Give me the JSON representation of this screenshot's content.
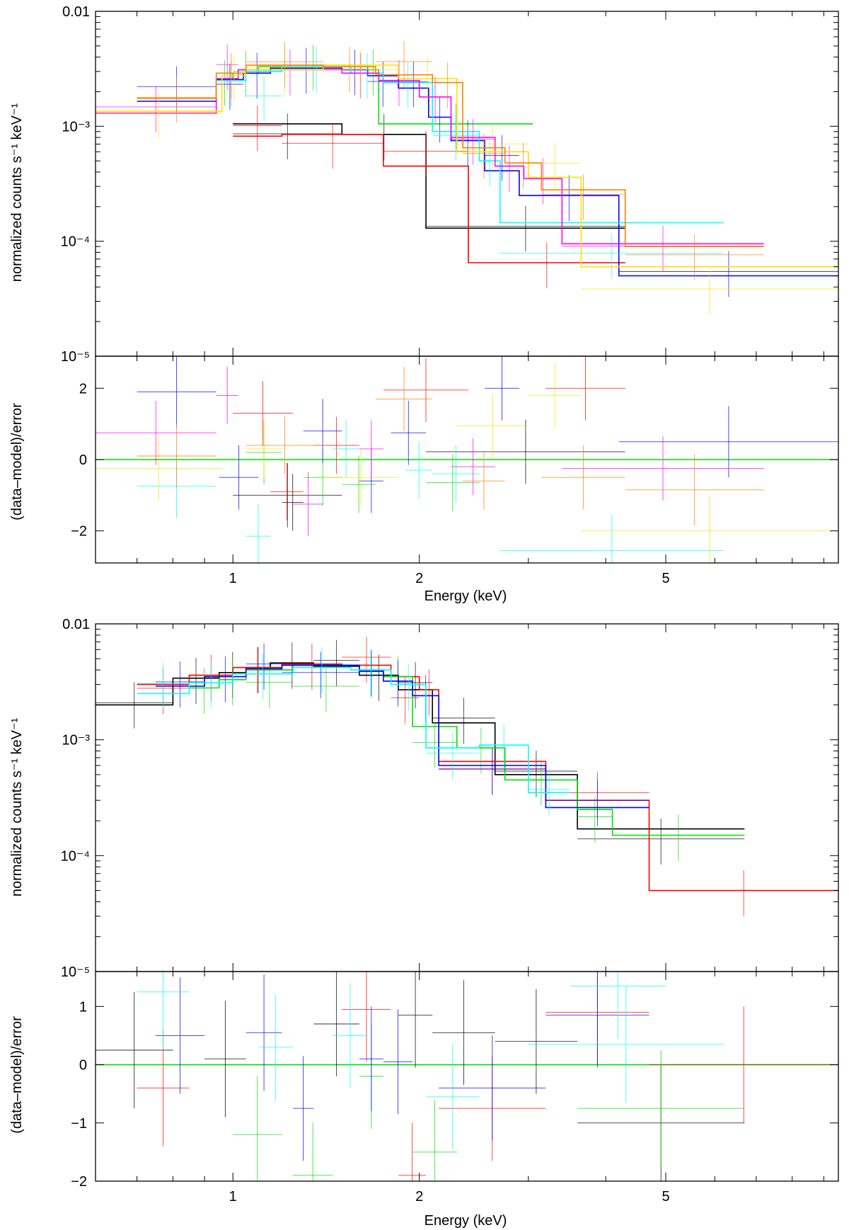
{
  "colors": {
    "black": "#000000",
    "red": "#ff0000",
    "green": "#00e000",
    "blue": "#0000ff",
    "cyan": "#00ffff",
    "magenta": "#ff00ff",
    "yellow": "#ffe000",
    "orange": "#ff8000"
  },
  "chart_data": [
    {
      "panel": "top",
      "type": "line",
      "title": "",
      "xlabel": "Energy (keV)",
      "xscale": "log",
      "xlim": [
        0.6,
        9.5
      ],
      "xticks": [
        {
          "v": 1,
          "label": "1"
        },
        {
          "v": 2,
          "label": "2"
        },
        {
          "v": 5,
          "label": "5"
        }
      ],
      "spectrum": {
        "ylabel": "normalized counts s⁻¹ keV⁻¹",
        "yscale": "log",
        "ylim": [
          1e-05,
          0.01
        ],
        "yticks": [
          {
            "v": 0.01,
            "label": "0.01"
          },
          {
            "v": 0.001,
            "label": "10⁻³"
          },
          {
            "v": 0.0001,
            "label": "10⁻⁴"
          },
          {
            "v": 1e-05,
            "label": "10⁻⁵"
          }
        ],
        "series": [
          {
            "name": "black",
            "color": "black",
            "edges": [
              1.0,
              1.5,
              2.05,
              4.3
            ],
            "model": [
              0.00105,
              0.00085,
              0.00013
            ]
          },
          {
            "name": "red",
            "color": "red",
            "edges": [
              1.0,
              1.2,
              1.75,
              2.4,
              4.3
            ],
            "model": [
              0.00082,
              0.00085,
              0.00045,
              6.5e-05
            ]
          },
          {
            "name": "green",
            "color": "green",
            "edges": [
              0.94,
              1.0,
              1.1,
              1.65,
              1.72,
              3.05
            ],
            "model": [
              0.0025,
              0.0029,
              0.0033,
              0.0031,
              0.00105
            ]
          },
          {
            "name": "blue",
            "color": "blue",
            "edges": [
              0.7,
              0.94,
              1.04,
              1.15,
              1.5,
              1.65,
              1.85,
              2.07,
              2.25,
              2.55,
              2.9,
              4.2,
              9.5
            ],
            "model": [
              0.00165,
              0.00255,
              0.0029,
              0.0032,
              0.0031,
              0.00275,
              0.00215,
              0.0012,
              0.00075,
              0.00041,
              0.00025,
              5e-05
            ]
          },
          {
            "name": "cyan",
            "color": "cyan",
            "edges": [
              0.94,
              1.05,
              1.2,
              1.55,
              1.75,
              2.1,
              2.5,
              2.7,
              6.2
            ],
            "model": [
              0.0025,
              0.003,
              0.0033,
              0.0029,
              0.0024,
              0.0009,
              0.0005,
              0.000145
            ]
          },
          {
            "name": "magenta",
            "color": "magenta",
            "edges": [
              0.6,
              0.94,
              1.02,
              1.5,
              1.72,
              2.0,
              2.25,
              2.65,
              2.95,
              3.4,
              7.2
            ],
            "model": [
              0.0013,
              0.0026,
              0.0031,
              0.0029,
              0.0025,
              0.0018,
              0.0008,
              0.00045,
              0.00035,
              9.5e-05
            ]
          },
          {
            "name": "yellow",
            "color": "yellow",
            "edges": [
              0.6,
              0.96,
              1.05,
              1.4,
              1.85,
              2.3,
              3.0,
              3.65,
              9.5
            ],
            "model": [
              0.00135,
              0.00275,
              0.0031,
              0.0034,
              0.0026,
              0.0006,
              0.00036,
              6e-05
            ]
          },
          {
            "name": "orange",
            "color": "orange",
            "edges": [
              0.7,
              0.94,
              1.05,
              1.4,
              1.7,
              2.1,
              2.35,
              2.75,
              3.15,
              4.3,
              7.2
            ],
            "model": [
              0.00175,
              0.0029,
              0.0034,
              0.0033,
              0.0028,
              0.0024,
              0.00065,
              0.00048,
              0.00028,
              9e-05
            ]
          }
        ]
      },
      "residuals": {
        "ylabel": "(data–model)/error",
        "ylim": [
          -2.9,
          2.9
        ],
        "yticks": [
          {
            "v": 2,
            "label": "2"
          },
          {
            "v": 0,
            "label": "0"
          },
          {
            "v": -2,
            "label": "−2"
          }
        ],
        "zero_line_color": "green",
        "points": [
          [
            "black",
            1.0,
            1.5,
            -1.0,
            0.9
          ],
          [
            "black",
            2.05,
            4.3,
            0.22,
            0.9
          ],
          [
            "black",
            1.2,
            1.3,
            -1.2,
            0.8
          ],
          [
            "red",
            1.0,
            1.25,
            1.3,
            0.9
          ],
          [
            "red",
            1.75,
            2.4,
            1.95,
            0.9
          ],
          [
            "red",
            3.2,
            4.3,
            2.0,
            0.9
          ],
          [
            "red",
            1.35,
            1.6,
            0.4,
            0.8
          ],
          [
            "red",
            1.15,
            1.3,
            -0.9,
            0.8
          ],
          [
            "green",
            1.05,
            1.2,
            0.2,
            0.9
          ],
          [
            "green",
            1.5,
            1.7,
            -0.7,
            0.8
          ],
          [
            "green",
            2.05,
            2.5,
            -0.65,
            0.8
          ],
          [
            "green",
            1.3,
            1.5,
            -0.5,
            0.8
          ],
          [
            "blue",
            0.7,
            0.94,
            1.9,
            1.0
          ],
          [
            "blue",
            0.95,
            1.1,
            -0.5,
            0.9
          ],
          [
            "blue",
            1.3,
            1.5,
            0.8,
            0.9
          ],
          [
            "blue",
            2.55,
            2.9,
            2.0,
            0.9
          ],
          [
            "blue",
            1.8,
            2.05,
            0.75,
            0.9
          ],
          [
            "blue",
            4.2,
            9.5,
            0.5,
            1.0
          ],
          [
            "blue",
            1.6,
            1.75,
            -0.6,
            0.9
          ],
          [
            "cyan",
            0.7,
            0.94,
            -0.75,
            0.9
          ],
          [
            "cyan",
            1.05,
            1.15,
            -2.15,
            0.9
          ],
          [
            "cyan",
            1.45,
            1.6,
            0.3,
            0.8
          ],
          [
            "cyan",
            2.1,
            2.5,
            -0.4,
            0.8
          ],
          [
            "cyan",
            2.7,
            6.2,
            -2.55,
            1.0
          ],
          [
            "cyan",
            1.9,
            2.1,
            -0.3,
            0.8
          ],
          [
            "magenta",
            0.6,
            0.94,
            0.75,
            0.9
          ],
          [
            "magenta",
            0.94,
            1.02,
            1.8,
            0.8
          ],
          [
            "magenta",
            1.25,
            1.4,
            -1.25,
            0.9
          ],
          [
            "magenta",
            2.25,
            2.65,
            -0.2,
            0.8
          ],
          [
            "magenta",
            3.4,
            7.2,
            -0.25,
            0.9
          ],
          [
            "magenta",
            1.6,
            1.75,
            0.3,
            0.8
          ],
          [
            "yellow",
            0.6,
            0.96,
            -0.25,
            0.9
          ],
          [
            "yellow",
            1.4,
            1.85,
            -0.5,
            0.8
          ],
          [
            "yellow",
            2.3,
            3.0,
            0.95,
            0.9
          ],
          [
            "yellow",
            3.65,
            9.5,
            -2.0,
            1.0
          ],
          [
            "yellow",
            3.0,
            3.65,
            1.8,
            0.9
          ],
          [
            "yellow",
            1.05,
            1.2,
            0.3,
            0.8
          ],
          [
            "orange",
            0.7,
            0.94,
            0.1,
            0.9
          ],
          [
            "orange",
            1.05,
            1.4,
            0.4,
            0.8
          ],
          [
            "orange",
            1.7,
            2.1,
            1.7,
            0.9
          ],
          [
            "orange",
            3.15,
            4.3,
            -0.5,
            0.9
          ],
          [
            "orange",
            4.3,
            7.2,
            -0.85,
            1.0
          ],
          [
            "orange",
            2.35,
            2.75,
            -0.6,
            0.8
          ]
        ]
      }
    },
    {
      "panel": "bottom",
      "type": "line",
      "title": "",
      "xlabel": "Energy (keV)",
      "xscale": "log",
      "xlim": [
        0.6,
        9.5
      ],
      "xticks": [
        {
          "v": 1,
          "label": "1"
        },
        {
          "v": 2,
          "label": "2"
        },
        {
          "v": 5,
          "label": "5"
        }
      ],
      "spectrum": {
        "ylabel": "normalized counts s⁻¹ keV⁻¹",
        "yscale": "log",
        "ylim": [
          1e-05,
          0.01
        ],
        "yticks": [
          {
            "v": 0.01,
            "label": "0.01"
          },
          {
            "v": 0.001,
            "label": "10⁻³"
          },
          {
            "v": 0.0001,
            "label": "10⁻⁴"
          },
          {
            "v": 1e-05,
            "label": "10⁻⁵"
          }
        ],
        "series": [
          {
            "name": "black",
            "color": "black",
            "edges": [
              0.6,
              0.8,
              0.95,
              1.05,
              1.15,
              1.35,
              1.6,
              1.85,
              2.1,
              2.65,
              3.6,
              6.7
            ],
            "model": [
              0.002,
              0.0034,
              0.0038,
              0.0042,
              0.0046,
              0.0043,
              0.0036,
              0.0027,
              0.0014,
              0.0005,
              0.00017
            ]
          },
          {
            "name": "red",
            "color": "red",
            "edges": [
              0.7,
              0.85,
              1.0,
              1.2,
              1.5,
              1.8,
              2.0,
              2.15,
              3.2,
              4.7,
              9.5
            ],
            "model": [
              0.003,
              0.0036,
              0.0042,
              0.0045,
              0.0044,
              0.0035,
              0.0027,
              0.00065,
              0.0003,
              5e-05
            ]
          },
          {
            "name": "green",
            "color": "green",
            "edges": [
              0.85,
              0.95,
              1.05,
              1.25,
              1.6,
              1.75,
              1.95,
              2.3,
              2.75,
              3.6,
              4.1,
              6.7
            ],
            "model": [
              0.0028,
              0.0033,
              0.004,
              0.0044,
              0.004,
              0.0035,
              0.0013,
              0.00085,
              0.00045,
              0.00025,
              0.00015
            ]
          },
          {
            "name": "blue",
            "color": "blue",
            "edges": [
              0.75,
              0.9,
              1.05,
              1.2,
              1.6,
              1.75,
              1.95,
              2.15,
              3.2,
              4.7
            ],
            "model": [
              0.0029,
              0.0035,
              0.0041,
              0.0044,
              0.0039,
              0.0032,
              0.0024,
              0.0006,
              0.00026
            ]
          },
          {
            "name": "cyan",
            "color": "cyan",
            "edges": [
              0.7,
              0.85,
              1.0,
              1.25,
              1.55,
              1.8,
              2.05,
              2.5,
              3.0,
              3.5
            ],
            "model": [
              0.0025,
              0.0031,
              0.0037,
              0.0042,
              0.004,
              0.003,
              0.00085,
              0.0009,
              0.00035
            ]
          }
        ]
      },
      "residuals": {
        "ylabel": "(data–model)/error",
        "ylim": [
          -2.0,
          1.6
        ],
        "yticks": [
          {
            "v": 1,
            "label": "1"
          },
          {
            "v": 0,
            "label": "0"
          },
          {
            "v": -1,
            "label": "−1"
          },
          {
            "v": -2,
            "label": "−2"
          }
        ],
        "zero_line_color": "green",
        "points": [
          [
            "black",
            0.6,
            0.8,
            0.25,
            1.0
          ],
          [
            "black",
            0.9,
            1.05,
            0.1,
            1.0
          ],
          [
            "black",
            1.35,
            1.6,
            0.7,
            0.9
          ],
          [
            "black",
            2.1,
            2.65,
            0.55,
            0.9
          ],
          [
            "black",
            2.65,
            3.6,
            0.4,
            0.9
          ],
          [
            "black",
            3.6,
            6.7,
            -1.0,
            1.0
          ],
          [
            "black",
            1.85,
            2.1,
            0.85,
            0.9
          ],
          [
            "red",
            0.7,
            0.85,
            -0.4,
            1.0
          ],
          [
            "red",
            1.5,
            1.8,
            0.95,
            0.9
          ],
          [
            "red",
            2.15,
            3.2,
            -0.75,
            0.9
          ],
          [
            "red",
            3.2,
            4.7,
            0.9,
            0.9
          ],
          [
            "red",
            4.7,
            9.5,
            0.0,
            1.0
          ],
          [
            "red",
            1.85,
            2.05,
            -1.9,
            0.9
          ],
          [
            "green",
            1.0,
            1.2,
            -1.2,
            1.0
          ],
          [
            "green",
            1.6,
            1.75,
            -0.2,
            0.9
          ],
          [
            "green",
            1.95,
            2.3,
            -1.5,
            0.9
          ],
          [
            "green",
            3.6,
            6.7,
            -0.75,
            1.0
          ],
          [
            "green",
            1.25,
            1.45,
            -1.9,
            0.9
          ],
          [
            "blue",
            0.75,
            0.9,
            0.5,
            1.0
          ],
          [
            "blue",
            1.05,
            1.2,
            0.55,
            1.0
          ],
          [
            "blue",
            1.25,
            1.35,
            -0.75,
            0.9
          ],
          [
            "blue",
            1.6,
            1.75,
            0.1,
            0.9
          ],
          [
            "blue",
            2.15,
            3.2,
            -0.4,
            0.9
          ],
          [
            "blue",
            3.2,
            4.7,
            0.85,
            0.9
          ],
          [
            "blue",
            1.75,
            1.95,
            0.05,
            0.9
          ],
          [
            "cyan",
            0.7,
            0.85,
            1.25,
            1.0
          ],
          [
            "cyan",
            1.1,
            1.25,
            0.3,
            0.9
          ],
          [
            "cyan",
            1.45,
            1.65,
            0.5,
            0.9
          ],
          [
            "cyan",
            2.05,
            2.5,
            -0.55,
            0.9
          ],
          [
            "cyan",
            3.0,
            6.2,
            0.35,
            1.0
          ],
          [
            "cyan",
            3.5,
            5.0,
            1.35,
            0.9
          ]
        ]
      }
    }
  ]
}
